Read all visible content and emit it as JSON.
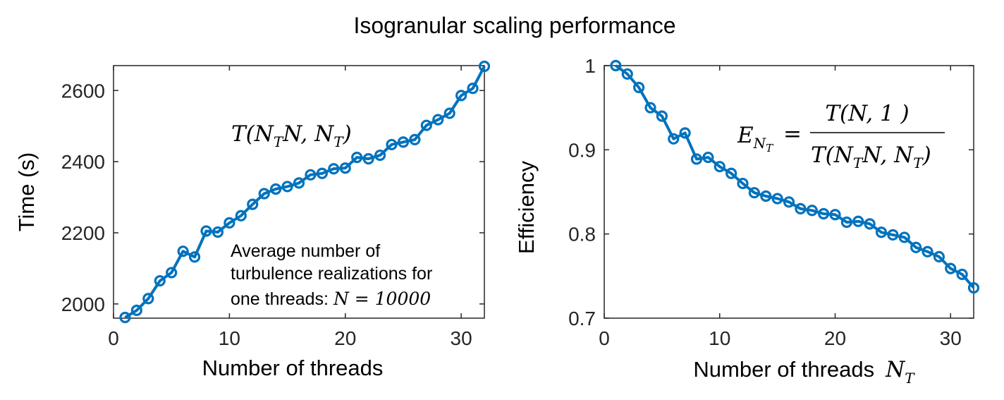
{
  "figure": {
    "title": "Isogranular scaling performance"
  },
  "chart_data": [
    {
      "type": "line",
      "title": "",
      "xlabel": "Number of threads",
      "ylabel": "Time (s)",
      "xlim": [
        0,
        32
      ],
      "ylim": [
        1960,
        2670
      ],
      "xticks": [
        0,
        10,
        20,
        30
      ],
      "yticks": [
        2000,
        2200,
        2400,
        2600
      ],
      "grid": false,
      "marker": "circle",
      "color": "#0072BD",
      "x": [
        1,
        2,
        3,
        4,
        5,
        6,
        7,
        8,
        9,
        10,
        11,
        12,
        13,
        14,
        15,
        16,
        17,
        18,
        19,
        20,
        21,
        22,
        23,
        24,
        25,
        26,
        27,
        28,
        29,
        30,
        31,
        32
      ],
      "values": [
        1962,
        1982,
        2015,
        2065,
        2088,
        2148,
        2132,
        2205,
        2202,
        2228,
        2248,
        2280,
        2310,
        2323,
        2330,
        2340,
        2363,
        2367,
        2380,
        2382,
        2412,
        2408,
        2418,
        2448,
        2455,
        2462,
        2502,
        2518,
        2536,
        2586,
        2606,
        2668
      ],
      "annotations": {
        "formula": "T(N_T N, N_T)",
        "note_line1": "Average number of",
        "note_line2": "turbulence realizations for",
        "note_line3": "one threads: ",
        "note_math": "N = 10000"
      }
    },
    {
      "type": "line",
      "title": "",
      "xlabel": "Number of threads",
      "xlabel_math": "N_T",
      "ylabel": "Efficiency",
      "xlim": [
        0,
        32
      ],
      "ylim": [
        0.7,
        1.0
      ],
      "xticks": [
        0,
        10,
        20,
        30
      ],
      "yticks": [
        0.7,
        0.8,
        0.9,
        1
      ],
      "ytick_labels": [
        "0.7",
        "0.8",
        "0.9",
        "1"
      ],
      "grid": false,
      "marker": "circle",
      "color": "#0072BD",
      "x": [
        1,
        2,
        3,
        4,
        5,
        6,
        7,
        8,
        9,
        10,
        11,
        12,
        13,
        14,
        15,
        16,
        17,
        18,
        19,
        20,
        21,
        22,
        23,
        24,
        25,
        26,
        27,
        28,
        29,
        30,
        31,
        32
      ],
      "values": [
        1.0,
        0.99,
        0.974,
        0.95,
        0.94,
        0.913,
        0.92,
        0.889,
        0.891,
        0.88,
        0.872,
        0.86,
        0.849,
        0.845,
        0.842,
        0.838,
        0.83,
        0.828,
        0.824,
        0.823,
        0.814,
        0.815,
        0.812,
        0.802,
        0.799,
        0.796,
        0.784,
        0.779,
        0.773,
        0.759,
        0.752,
        0.736
      ],
      "annotations": {
        "formula": "E_{N_T} = T(N, 1) / T(N_T N, N_T)"
      }
    }
  ]
}
